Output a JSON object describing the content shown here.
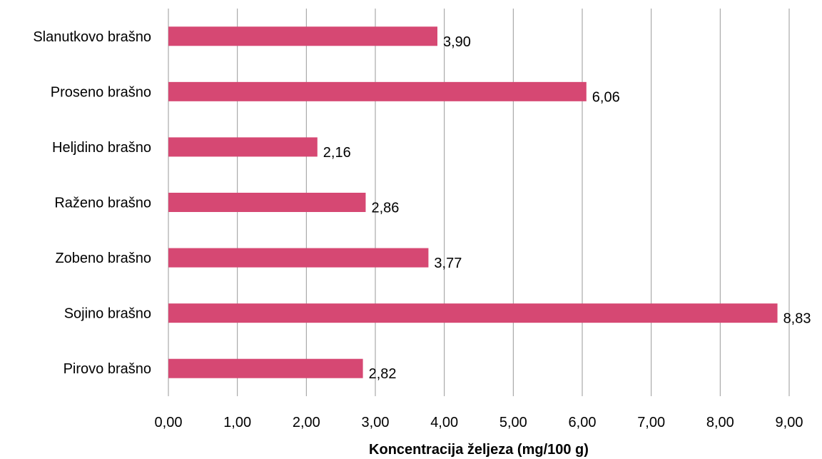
{
  "chart_data": {
    "type": "bar",
    "orientation": "horizontal",
    "title": "",
    "xlabel": "Koncentracija željeza (mg/100 g)",
    "ylabel": "",
    "categories": [
      "Slanutkovo brašno",
      "Proseno brašno",
      "Heljdino brašno",
      "Raženo brašno",
      "Zobeno brašno",
      "Sojino brašno",
      "Pirovo brašno"
    ],
    "values": [
      3.9,
      6.06,
      2.16,
      2.86,
      3.77,
      8.83,
      2.82
    ],
    "value_labels": [
      "3,90",
      "6,06",
      "2,16",
      "2,86",
      "3,77",
      "8,83",
      "2,82"
    ],
    "xlim": [
      0,
      9
    ],
    "ticks": [
      "0,00",
      "1,00",
      "2,00",
      "3,00",
      "4,00",
      "5,00",
      "6,00",
      "7,00",
      "8,00",
      "9,00"
    ],
    "bar_color": "#D64873",
    "grid_color": "#999999",
    "grid": "vertical",
    "legend": "none"
  }
}
